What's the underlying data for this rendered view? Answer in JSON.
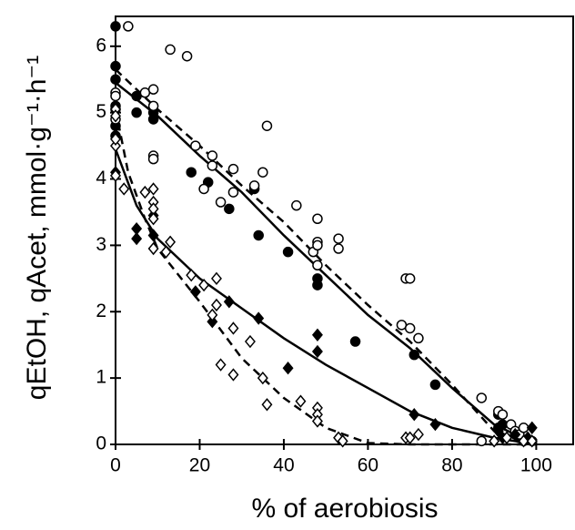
{
  "chart_data": {
    "type": "scatter",
    "x_label": "% of aerobiosis",
    "y_label": "qEtOH, qAcet, mmol·g⁻¹·h⁻¹",
    "xlim": [
      0,
      109
    ],
    "ylim": [
      0,
      6.45
    ],
    "xticks": [
      0,
      20,
      40,
      60,
      80,
      100
    ],
    "yticks": [
      0,
      1,
      2,
      3,
      4,
      5,
      6
    ],
    "color": "#000000",
    "series": [
      {
        "marker": "circle",
        "filled": true,
        "x": [
          0,
          0,
          0,
          0,
          0,
          0,
          5,
          5,
          9,
          9,
          18,
          22,
          27,
          33,
          34,
          41,
          48,
          48,
          57,
          71,
          76,
          91,
          91,
          92,
          95,
          96,
          97,
          99
        ],
        "values": [
          6.3,
          5.7,
          5.5,
          5.1,
          4.8,
          4.65,
          5.25,
          5.0,
          5.0,
          4.9,
          4.1,
          3.95,
          3.55,
          3.85,
          3.15,
          2.9,
          2.5,
          2.4,
          1.55,
          1.35,
          0.9,
          0.45,
          0.25,
          0.3,
          0.15,
          0.1,
          0.05,
          0.05
        ]
      },
      {
        "marker": "circle",
        "filled": false,
        "x": [
          0,
          0,
          0,
          0,
          3,
          7,
          9,
          9,
          9,
          9,
          13,
          17,
          19,
          21,
          23,
          23,
          25,
          28,
          28,
          33,
          35,
          36,
          43,
          47,
          48,
          48,
          48,
          48,
          53,
          53,
          69,
          70,
          68,
          70,
          72,
          87,
          91,
          92,
          94,
          95,
          96,
          97,
          87
        ],
        "values": [
          5.3,
          5.25,
          5.05,
          4.9,
          6.3,
          5.3,
          5.35,
          5.1,
          4.35,
          4.3,
          5.95,
          5.85,
          4.5,
          3.85,
          4.35,
          4.2,
          3.65,
          4.15,
          3.8,
          3.9,
          4.1,
          4.8,
          3.6,
          2.9,
          3.4,
          3.05,
          3.0,
          2.7,
          2.95,
          3.1,
          2.5,
          2.5,
          1.8,
          1.75,
          1.6,
          0.7,
          0.5,
          0.45,
          0.3,
          0.2,
          0.15,
          0.25,
          0.05
        ]
      },
      {
        "marker": "diamond",
        "filled": true,
        "x": [
          0,
          5,
          5,
          9,
          9,
          19,
          23,
          27,
          34,
          41,
          48,
          48,
          71,
          76,
          91,
          92,
          95,
          98,
          99
        ],
        "values": [
          4.1,
          3.25,
          3.1,
          3.15,
          3.45,
          2.3,
          1.85,
          2.15,
          1.9,
          1.15,
          1.65,
          1.4,
          0.45,
          0.3,
          0.2,
          0.1,
          0.15,
          0.1,
          0.25
        ]
      },
      {
        "marker": "diamond",
        "filled": false,
        "x": [
          0,
          0,
          0,
          0,
          2,
          0,
          7,
          9,
          9,
          9,
          9,
          9,
          12,
          13,
          18,
          21,
          24,
          24,
          23,
          25,
          28,
          28,
          32,
          35,
          36,
          44,
          48,
          48,
          48,
          53,
          54,
          69,
          70,
          72,
          90,
          93,
          97,
          99
        ],
        "values": [
          4.5,
          5.05,
          4.95,
          4.6,
          3.85,
          4.05,
          3.8,
          3.85,
          3.65,
          3.55,
          3.4,
          2.95,
          2.9,
          3.05,
          2.55,
          2.4,
          2.5,
          2.1,
          1.95,
          1.2,
          1.75,
          1.05,
          1.55,
          1.0,
          0.6,
          0.65,
          0.55,
          0.45,
          0.35,
          0.1,
          0.05,
          0.1,
          0.1,
          0.15,
          0.05,
          0.1,
          0.05,
          0.05
        ]
      }
    ],
    "fits": [
      {
        "dashed": false,
        "x": [
          0,
          10,
          20,
          30,
          40,
          50,
          60,
          70,
          80,
          90,
          100
        ],
        "values": [
          5.45,
          4.95,
          4.35,
          3.8,
          3.15,
          2.55,
          1.95,
          1.45,
          0.85,
          0.3,
          0
        ]
      },
      {
        "dashed": true,
        "x": [
          0,
          10,
          20,
          30,
          40,
          50,
          60,
          70,
          80,
          90,
          100
        ],
        "values": [
          5.65,
          5.05,
          4.5,
          3.9,
          3.35,
          2.7,
          2.1,
          1.55,
          0.9,
          0.2,
          0
        ]
      },
      {
        "dashed": false,
        "x": [
          0,
          5,
          10,
          20,
          30,
          40,
          50,
          60,
          70,
          80,
          90,
          100
        ],
        "values": [
          4.45,
          3.6,
          3.1,
          2.5,
          2.05,
          1.6,
          1.2,
          0.85,
          0.5,
          0.25,
          0.1,
          0
        ]
      },
      {
        "dashed": true,
        "x": [
          0,
          3,
          7,
          10,
          20,
          30,
          40,
          50,
          60,
          70,
          100
        ],
        "values": [
          5.05,
          4.1,
          3.4,
          2.95,
          2.15,
          1.3,
          0.7,
          0.25,
          0.02,
          0,
          0
        ]
      }
    ]
  }
}
